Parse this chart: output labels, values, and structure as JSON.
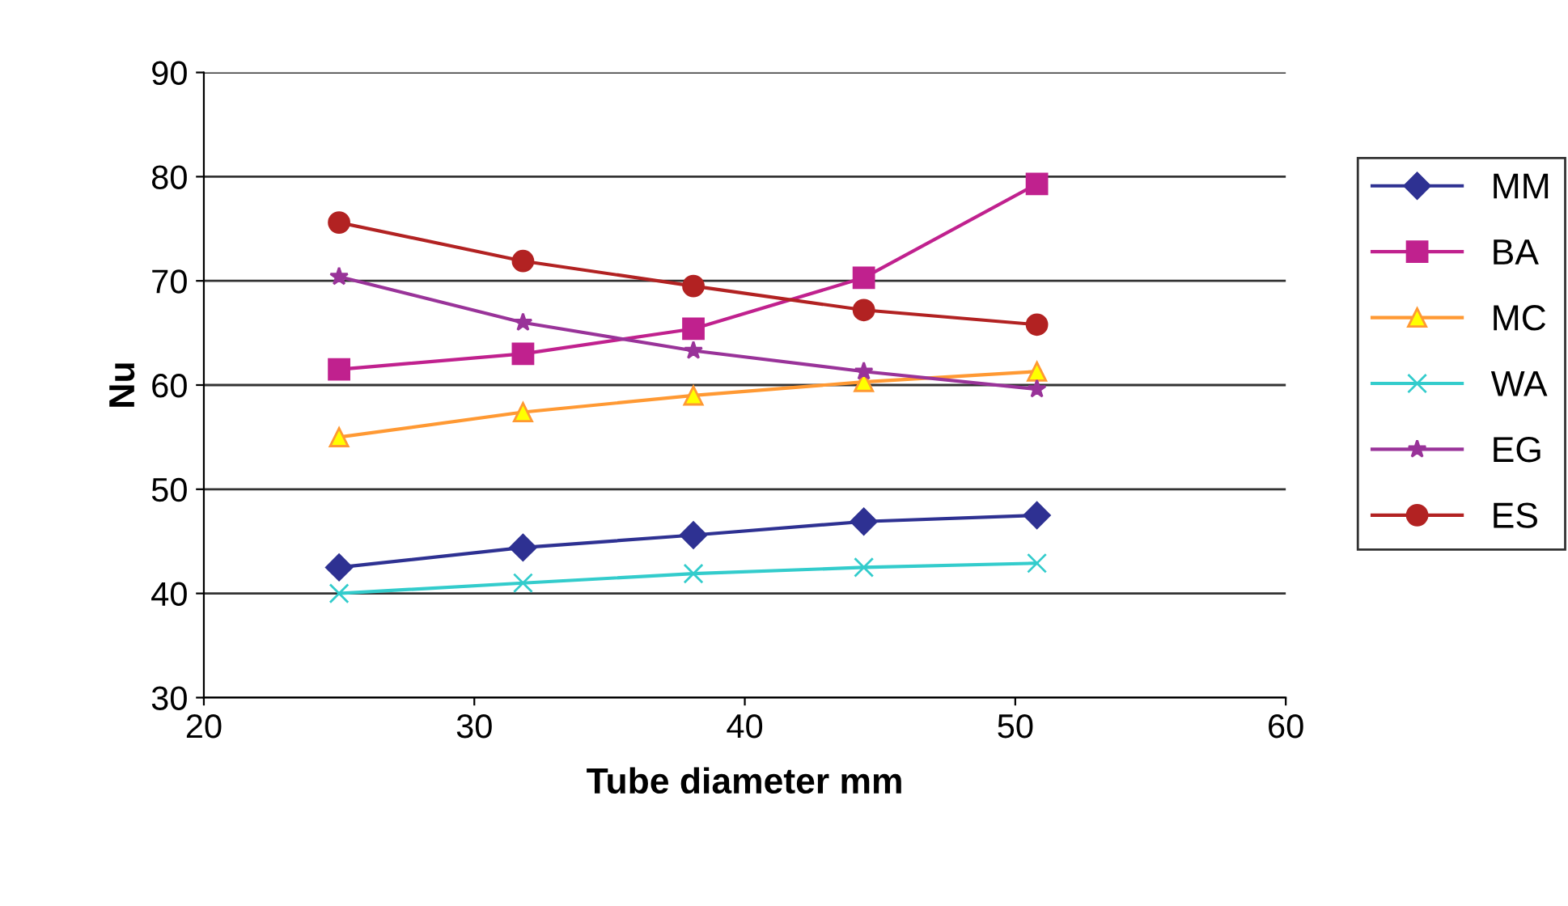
{
  "chart_data": {
    "type": "line",
    "xlabel": "Tube diameter mm",
    "ylabel": "Nu",
    "x": [
      25,
      31.8,
      38.1,
      44.4,
      50.8
    ],
    "series": [
      {
        "name": "MM",
        "color": "#2e3192",
        "marker": "diamond",
        "values": [
          42.5,
          44.4,
          45.6,
          46.9,
          47.5
        ]
      },
      {
        "name": "BA",
        "color": "#c0218e",
        "marker": "square",
        "values": [
          61.5,
          63.0,
          65.4,
          70.3,
          79.3
        ]
      },
      {
        "name": "MC",
        "color": "#ff9933",
        "marker": "triangle",
        "values": [
          55.0,
          57.4,
          59.0,
          60.3,
          61.3
        ]
      },
      {
        "name": "WA",
        "color": "#33cccc",
        "marker": "cross",
        "values": [
          40.0,
          41.0,
          41.9,
          42.5,
          42.9
        ]
      },
      {
        "name": "EG",
        "color": "#993399",
        "marker": "star",
        "values": [
          70.4,
          66.0,
          63.3,
          61.3,
          59.6
        ]
      },
      {
        "name": "ES",
        "color": "#b22222",
        "marker": "circle",
        "values": [
          75.6,
          71.9,
          69.5,
          67.2,
          65.8
        ]
      }
    ],
    "xlim": [
      20,
      60
    ],
    "xticks": [
      20,
      30,
      40,
      50,
      60
    ],
    "ylim": [
      30,
      90
    ],
    "yticks": [
      30,
      40,
      50,
      60,
      70,
      80,
      90
    ],
    "grid": "y",
    "legend": "right",
    "line_style": "solid"
  }
}
